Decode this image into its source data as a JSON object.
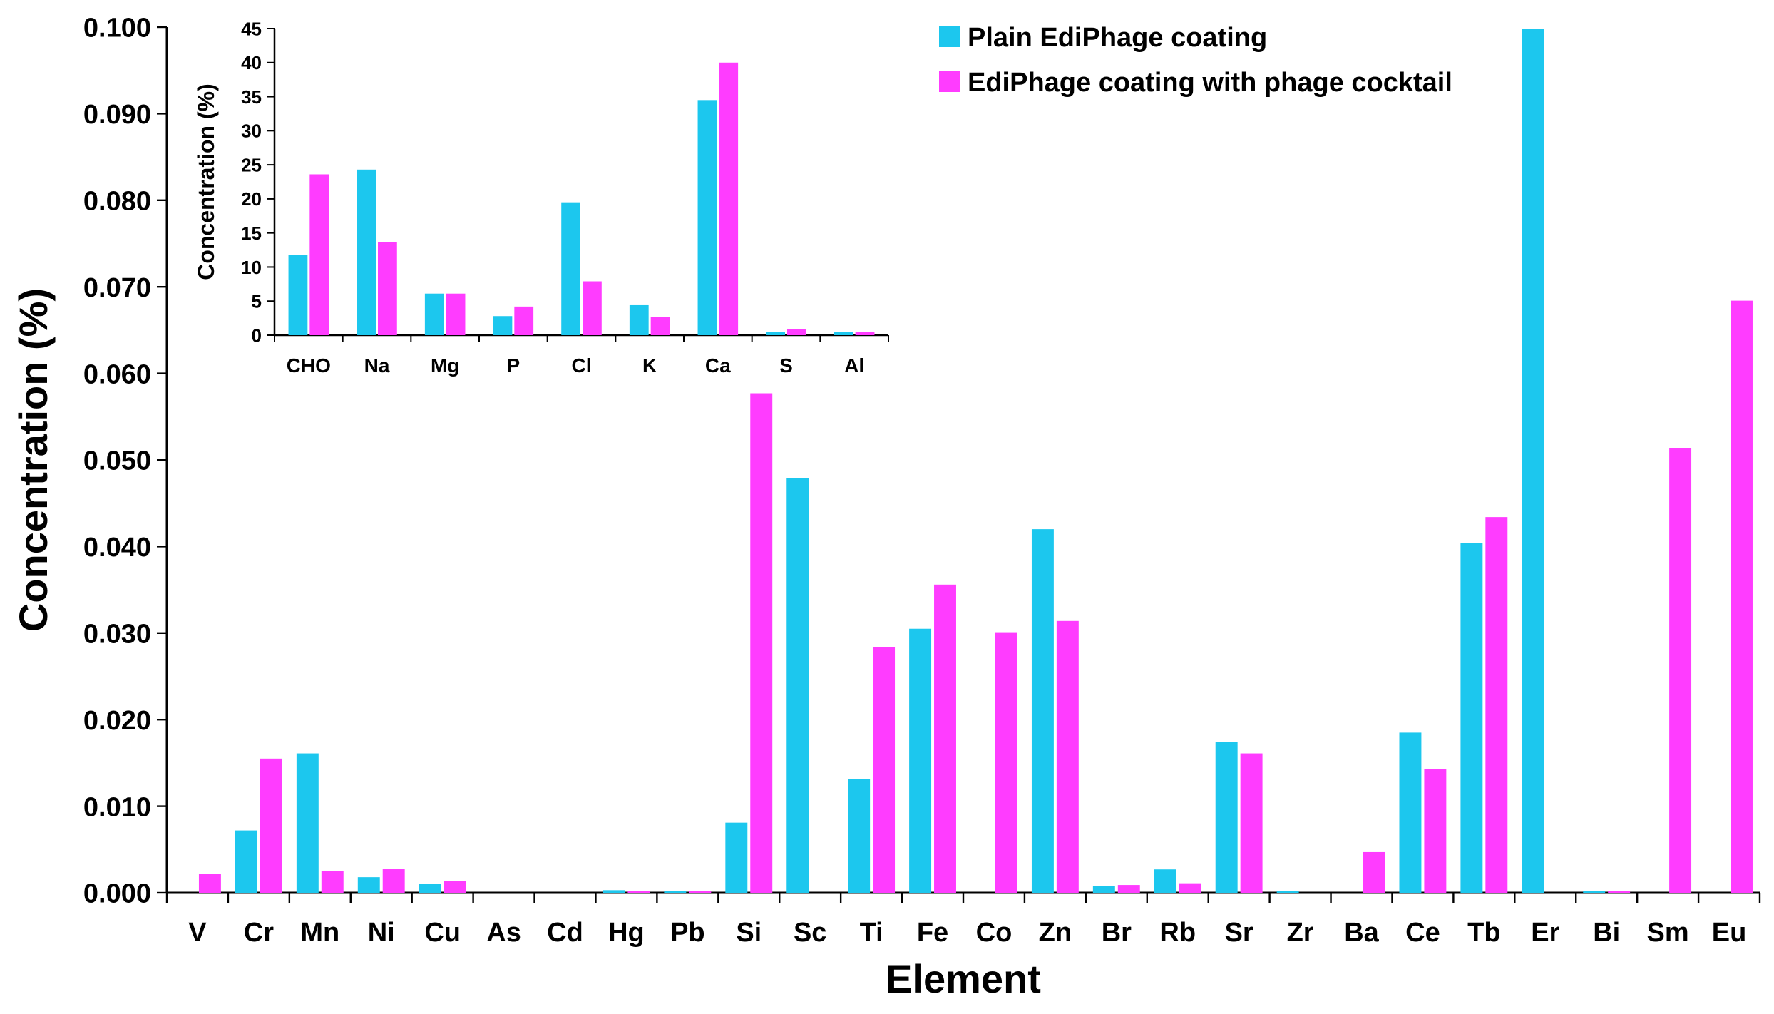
{
  "chart_data": [
    {
      "id": "main",
      "type": "bar",
      "xlabel": "Element",
      "ylabel": "Concentration (%)",
      "ylim": [
        0,
        0.1
      ],
      "yticks": [
        "0.000",
        "0.010",
        "0.020",
        "0.030",
        "0.040",
        "0.050",
        "0.060",
        "0.070",
        "0.080",
        "0.090",
        "0.100"
      ],
      "categories": [
        "V",
        "Cr",
        "Mn",
        "Ni",
        "Cu",
        "As",
        "Cd",
        "Hg",
        "Pb",
        "Si",
        "Sc",
        "Ti",
        "Fe",
        "Co",
        "Zn",
        "Br",
        "Rb",
        "Sr",
        "Zr",
        "Ba",
        "Ce",
        "Tb",
        "Er",
        "Bi",
        "Sm",
        "Eu"
      ],
      "series": [
        {
          "name": "Plain EdiPhage coating",
          "color": "#1cc7ee",
          "values": [
            0,
            0.0072,
            0.0161,
            0.0018,
            0.001,
            0,
            0,
            0.0003,
            0.0002,
            0.0081,
            0.0479,
            0.0131,
            0.0305,
            0,
            0.042,
            0.0008,
            0.0027,
            0.0174,
            0.0002,
            0,
            0.0185,
            0.0404,
            0.0998,
            0.0002,
            0,
            0
          ]
        },
        {
          "name": "EdiPhage coating with phage cocktail",
          "color": "#ff3cff",
          "values": [
            0.0022,
            0.0155,
            0.0025,
            0.0028,
            0.0014,
            0,
            0,
            0.0002,
            0.0002,
            0.0577,
            0,
            0.0284,
            0.0356,
            0.0301,
            0.0314,
            0.0009,
            0.0011,
            0.0161,
            0,
            0.0047,
            0.0143,
            0.0434,
            0,
            0.0002,
            0.0514,
            0.0684
          ]
        }
      ],
      "legend": "top-right"
    },
    {
      "id": "inset",
      "type": "bar",
      "xlabel": "",
      "ylabel": "Concentration (%)",
      "ylim": [
        0,
        45
      ],
      "yticks": [
        "0",
        "5",
        "10",
        "15",
        "20",
        "25",
        "30",
        "35",
        "40",
        "45"
      ],
      "categories": [
        "CHO",
        "Na",
        "Mg",
        "P",
        "Cl",
        "K",
        "Ca",
        "S",
        "Al"
      ],
      "series": [
        {
          "name": "Plain EdiPhage coating",
          "color": "#1cc7ee",
          "values": [
            11.8,
            24.3,
            6.1,
            2.8,
            19.5,
            4.4,
            34.5,
            0.5,
            0.5
          ]
        },
        {
          "name": "EdiPhage coating with phage cocktail",
          "color": "#ff3cff",
          "values": [
            23.6,
            13.7,
            6.1,
            4.2,
            7.9,
            2.7,
            40.0,
            0.9,
            0.5
          ]
        }
      ]
    }
  ]
}
